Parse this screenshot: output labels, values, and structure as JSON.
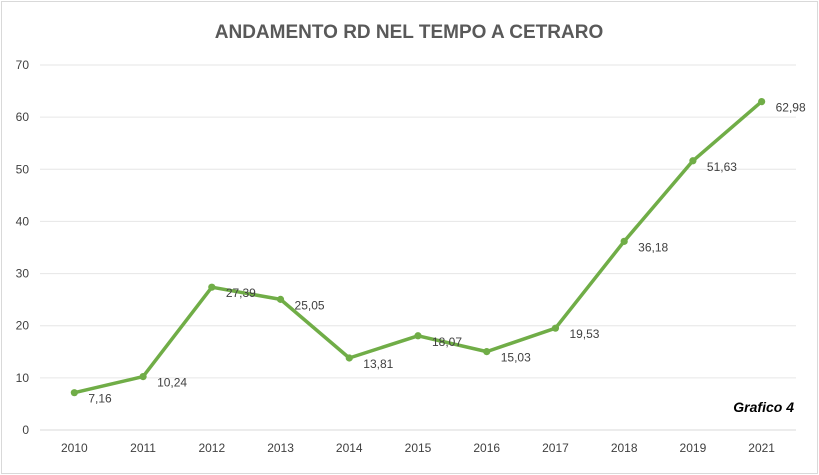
{
  "chart_data": {
    "type": "line",
    "title": "ANDAMENTO RD NEL TEMPO A CETRARO",
    "categories": [
      "2010",
      "2011",
      "2012",
      "2013",
      "2014",
      "2015",
      "2016",
      "2017",
      "2018",
      "2019",
      "2021"
    ],
    "values": [
      7.16,
      10.24,
      27.39,
      25.05,
      13.81,
      18.07,
      15.03,
      19.53,
      36.18,
      51.63,
      62.98
    ],
    "data_labels": [
      "7,16",
      "10,24",
      "27,39",
      "25,05",
      "13,81",
      "18,07",
      "15,03",
      "19,53",
      "36,18",
      "51,63",
      "62,98"
    ],
    "ylim": [
      0,
      70
    ],
    "yticks": [
      "0",
      "10",
      "20",
      "30",
      "40",
      "50",
      "60",
      "70"
    ],
    "grid": true,
    "legend": "none",
    "line_color": "#70ad47",
    "annotation": "Grafico 4"
  }
}
